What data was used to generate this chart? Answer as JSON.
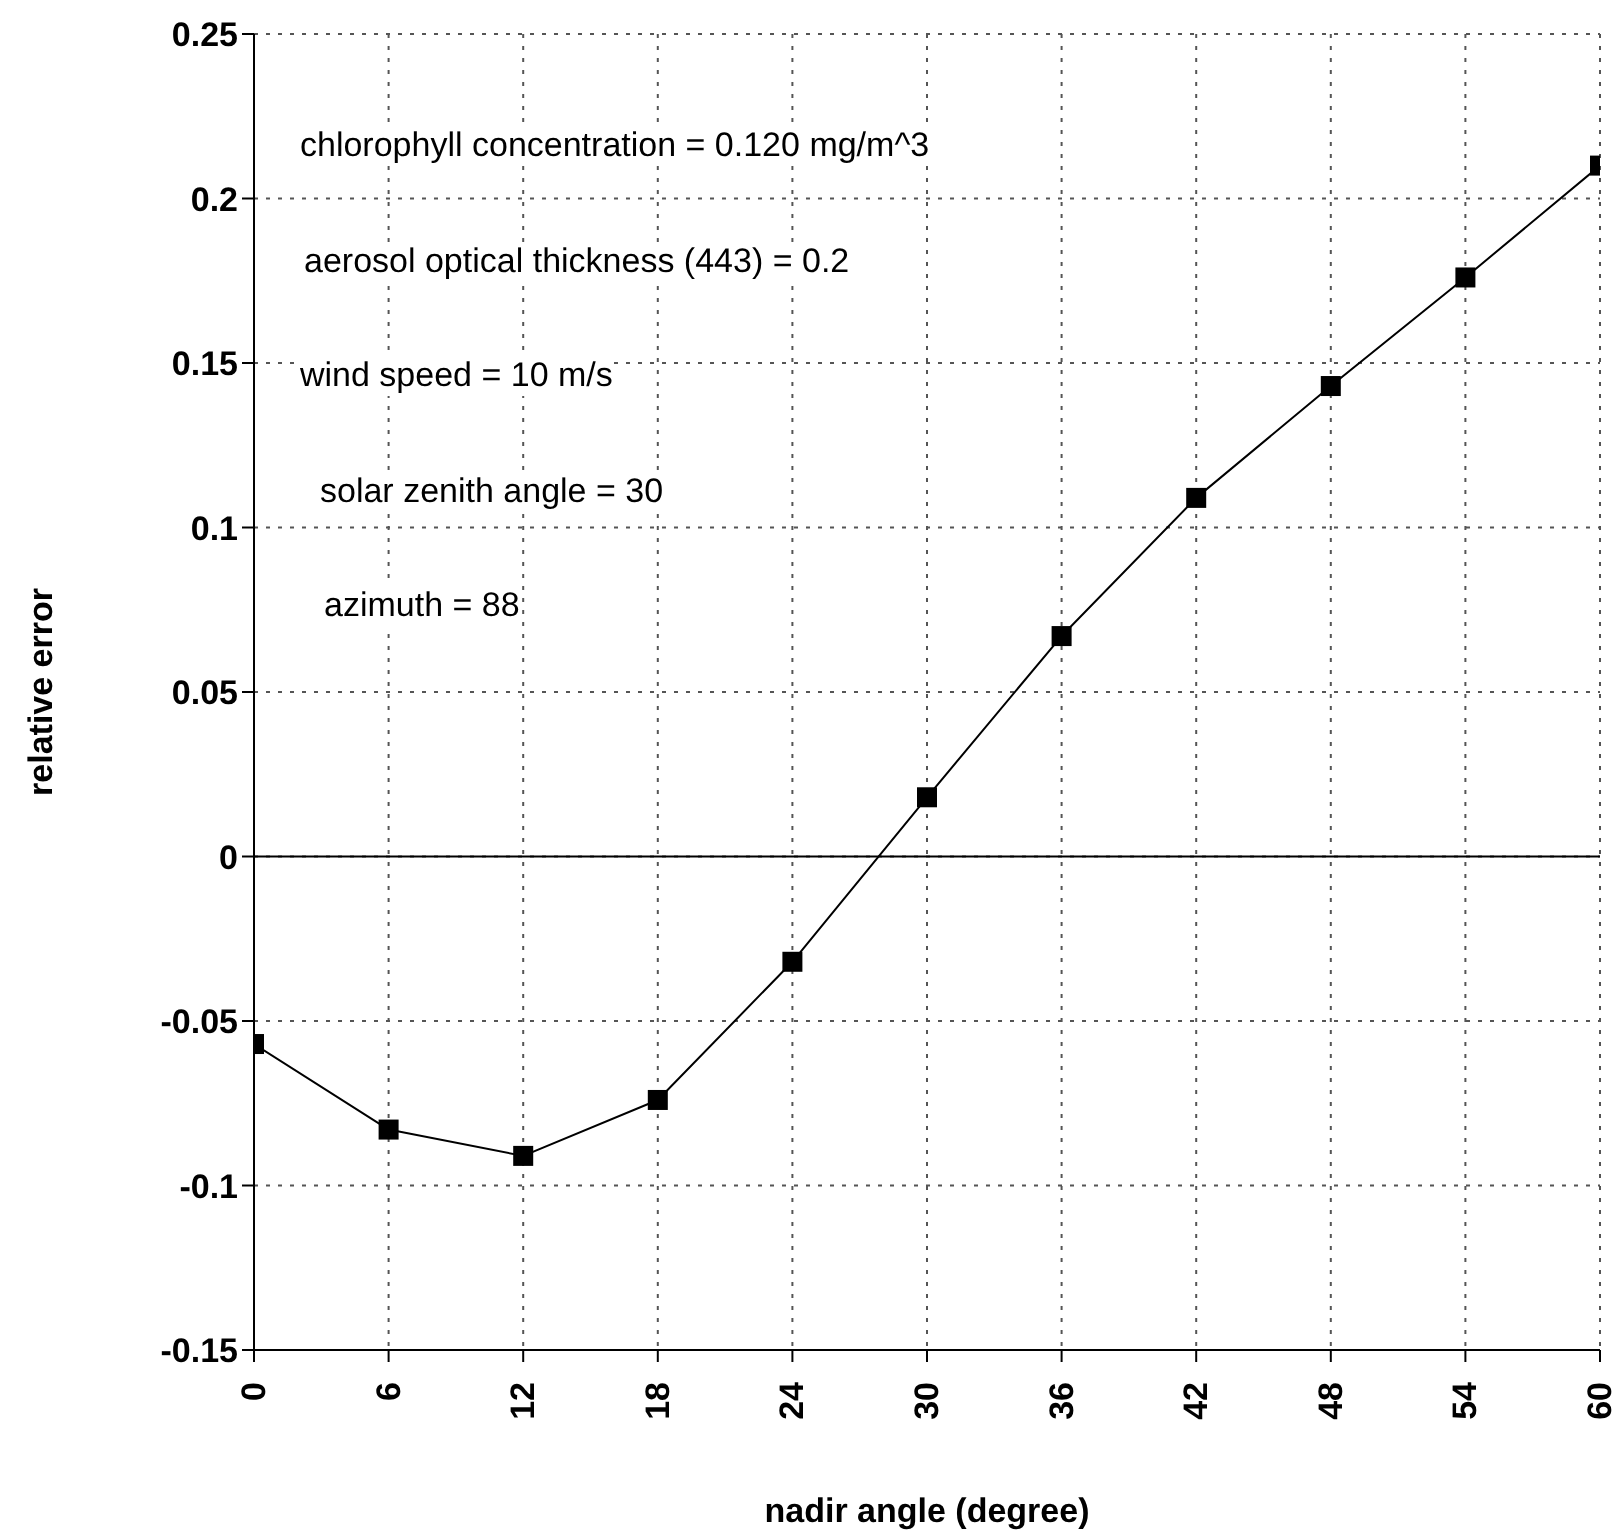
{
  "chart_data": {
    "type": "line",
    "xlabel": "nadir angle (degree)",
    "ylabel": "relative error",
    "x": [
      0,
      6,
      12,
      18,
      24,
      30,
      36,
      42,
      48,
      54,
      60
    ],
    "series": [
      {
        "color": "#000000",
        "values": [
          -0.057,
          -0.083,
          -0.091,
          -0.074,
          -0.032,
          0.018,
          0.067,
          0.109,
          0.143,
          0.176,
          0.21
        ]
      }
    ],
    "xlim": [
      0,
      60
    ],
    "xticks": [
      0,
      6,
      12,
      18,
      24,
      30,
      36,
      42,
      48,
      54,
      60
    ],
    "ylim": [
      -0.15,
      0.25
    ],
    "yticks": [
      -0.15,
      -0.1,
      -0.05,
      0,
      0.05,
      0.1,
      0.15,
      0.2,
      0.25
    ],
    "ref_lines": [
      {
        "axis": "y",
        "value": 0,
        "color": "#000000",
        "line_style": "solid"
      }
    ],
    "annotations": [
      "chlorophyll concentration = 0.120 mg/m^3",
      "aerosol optical thickness (443) = 0.2",
      "wind speed = 10 m/s",
      "solar zenith angle = 30",
      "azimuth = 88"
    ],
    "grid": true,
    "marker": "square",
    "line_style": "solid"
  }
}
